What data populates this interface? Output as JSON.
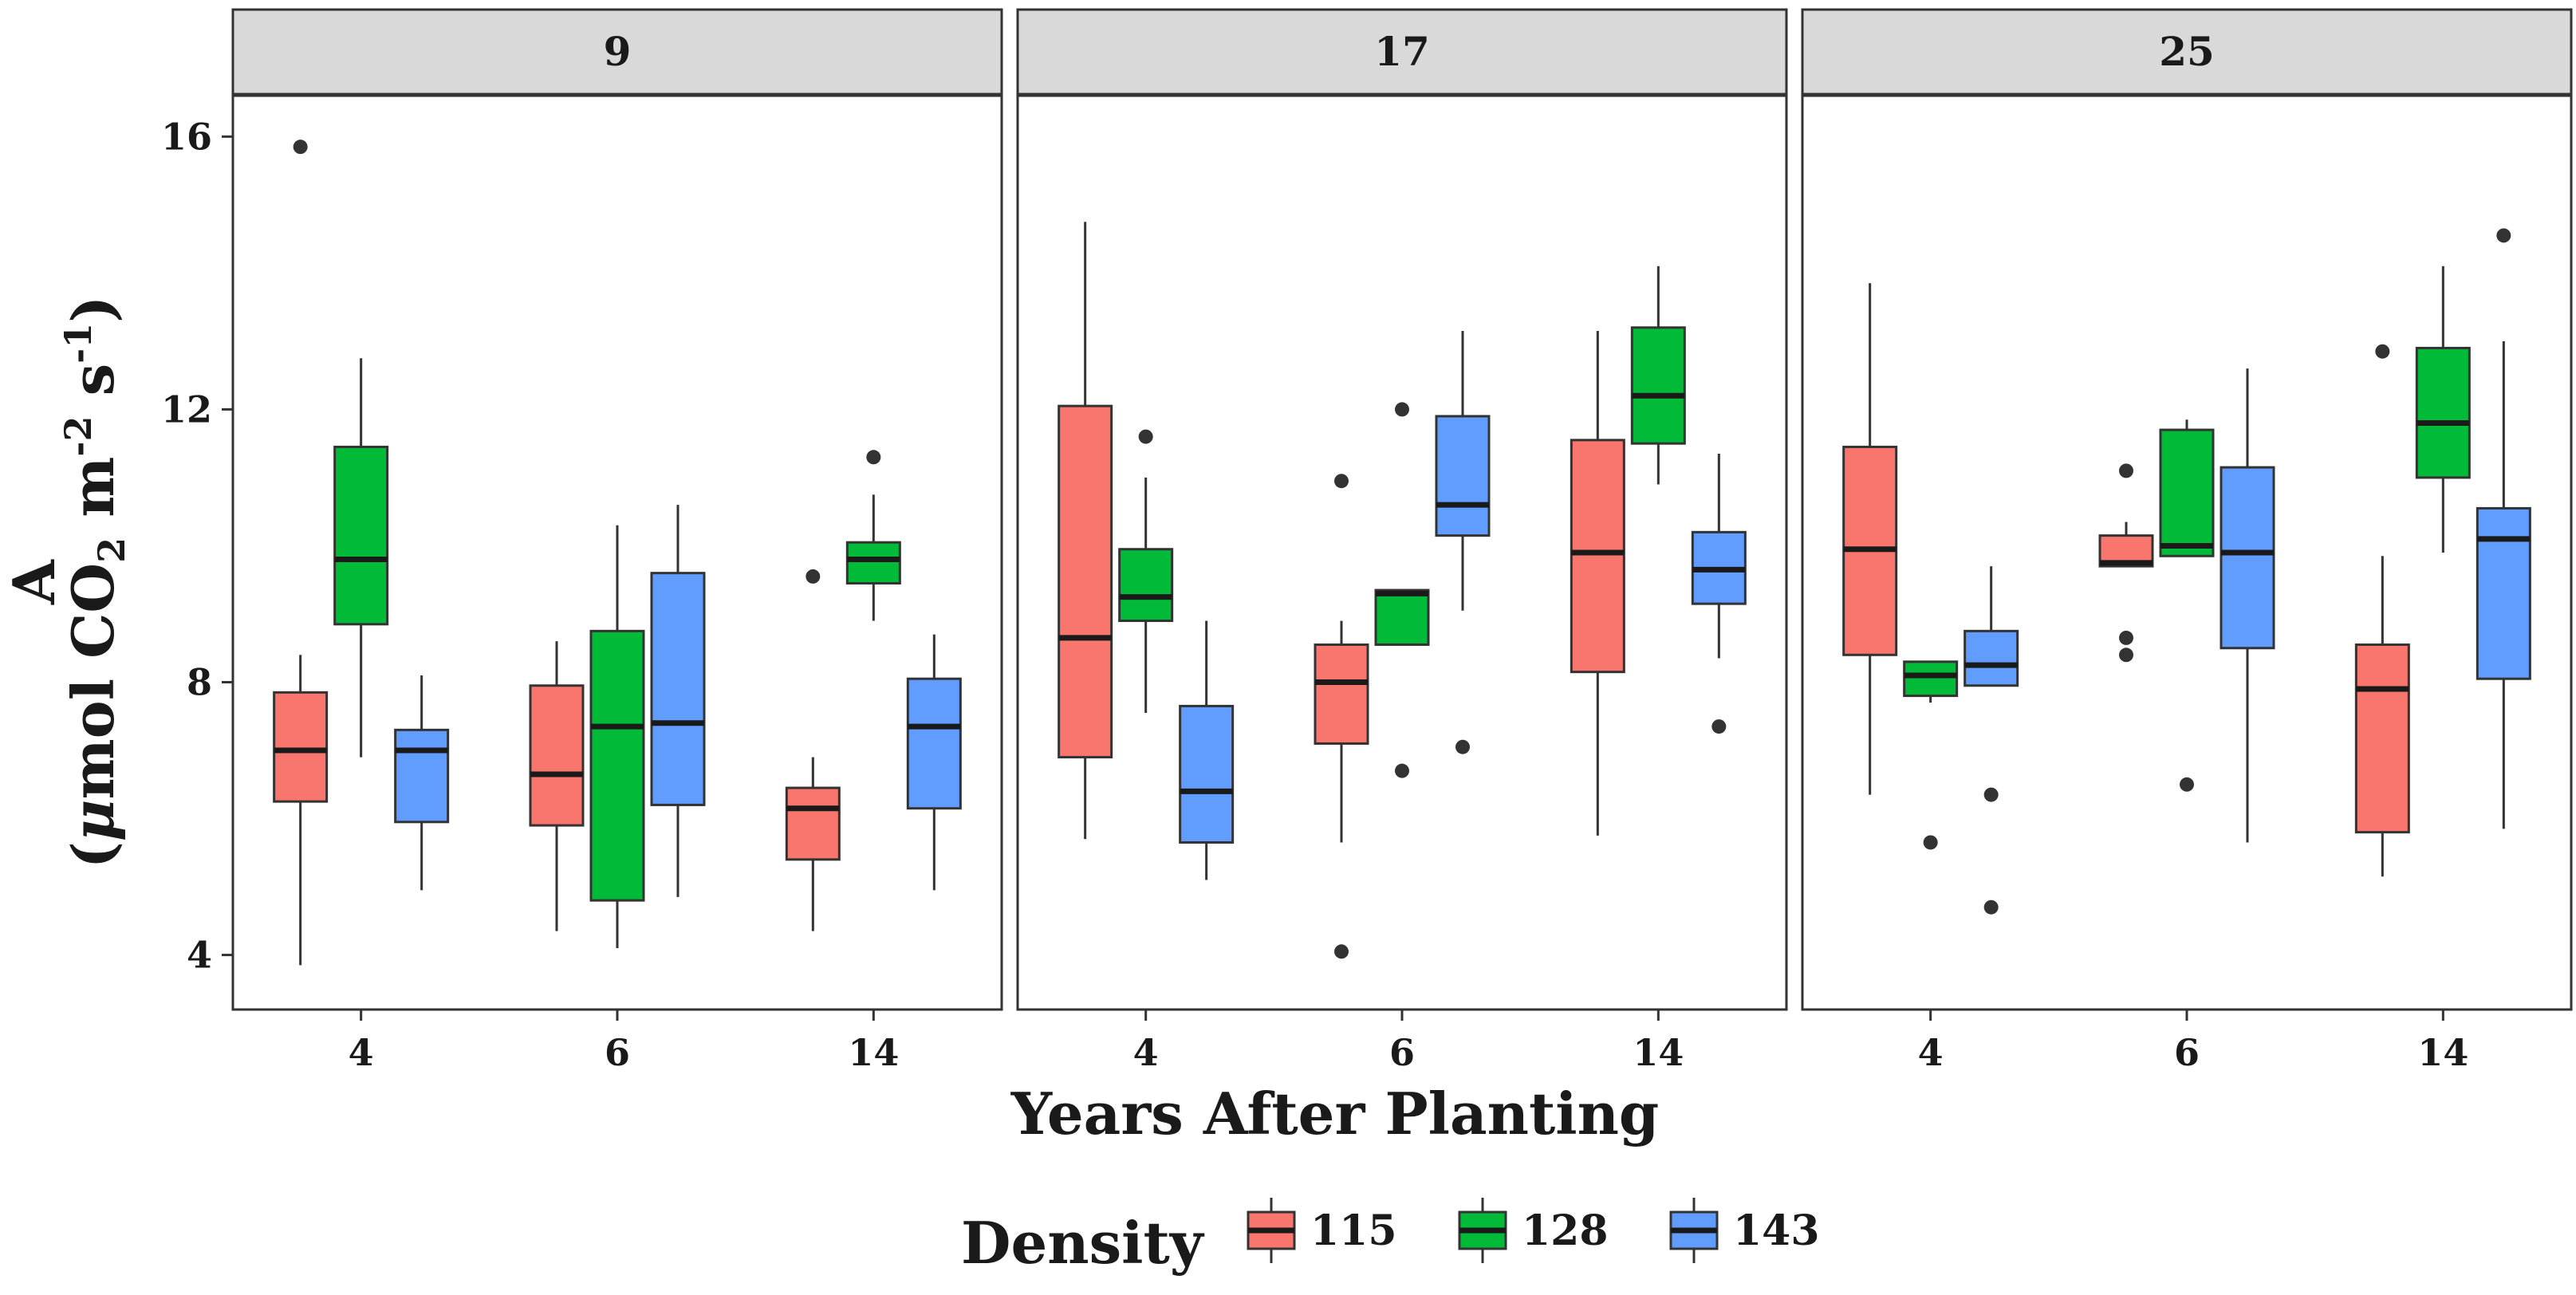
{
  "chart_data": {
    "type": "boxplot",
    "facets": [
      "9",
      "17",
      "25"
    ],
    "categories": [
      "4",
      "6",
      "14"
    ],
    "xlabel": "Years After Planting",
    "ylabel_line1": "A",
    "ylabel_line2_parts": [
      "(",
      "μ",
      "mol CO",
      "2",
      " m",
      "-2",
      " s",
      "-1",
      ")"
    ],
    "ylim": [
      3.2,
      16.6
    ],
    "yticks": [
      4,
      8,
      12,
      16
    ],
    "legend": {
      "title": "Density",
      "position": "bottom",
      "entries": [
        {
          "label": "115",
          "color": "#F8766D"
        },
        {
          "label": "128",
          "color": "#00BA38"
        },
        {
          "label": "143",
          "color": "#619CFF"
        }
      ]
    },
    "series_colors": {
      "115": "#F8766D",
      "128": "#00BA38",
      "143": "#619CFF"
    },
    "boxes": [
      {
        "facet": "9",
        "category": "4",
        "density": "115",
        "lower": 3.85,
        "q1": 6.25,
        "median": 7.0,
        "q3": 7.85,
        "upper": 8.4,
        "outliers": [
          15.85
        ]
      },
      {
        "facet": "9",
        "category": "4",
        "density": "128",
        "lower": 6.9,
        "q1": 8.85,
        "median": 9.8,
        "q3": 11.45,
        "upper": 12.75,
        "outliers": []
      },
      {
        "facet": "9",
        "category": "4",
        "density": "143",
        "lower": 4.95,
        "q1": 5.95,
        "median": 7.0,
        "q3": 7.3,
        "upper": 8.1,
        "outliers": []
      },
      {
        "facet": "9",
        "category": "6",
        "density": "115",
        "lower": 4.35,
        "q1": 5.9,
        "median": 6.65,
        "q3": 7.95,
        "upper": 8.6,
        "outliers": []
      },
      {
        "facet": "9",
        "category": "6",
        "density": "128",
        "lower": 4.1,
        "q1": 4.8,
        "median": 7.35,
        "q3": 8.75,
        "upper": 10.3,
        "outliers": []
      },
      {
        "facet": "9",
        "category": "6",
        "density": "143",
        "lower": 4.85,
        "q1": 6.2,
        "median": 7.4,
        "q3": 9.6,
        "upper": 10.6,
        "outliers": []
      },
      {
        "facet": "9",
        "category": "14",
        "density": "115",
        "lower": 4.35,
        "q1": 5.4,
        "median": 6.15,
        "q3": 6.45,
        "upper": 6.9,
        "outliers": [
          9.55
        ]
      },
      {
        "facet": "9",
        "category": "14",
        "density": "128",
        "lower": 8.9,
        "q1": 9.45,
        "median": 9.8,
        "q3": 10.05,
        "upper": 10.75,
        "outliers": [
          11.3
        ]
      },
      {
        "facet": "9",
        "category": "14",
        "density": "143",
        "lower": 4.95,
        "q1": 6.15,
        "median": 7.35,
        "q3": 8.05,
        "upper": 8.7,
        "outliers": []
      },
      {
        "facet": "17",
        "category": "4",
        "density": "115",
        "lower": 5.7,
        "q1": 6.9,
        "median": 8.65,
        "q3": 12.05,
        "upper": 14.75,
        "outliers": []
      },
      {
        "facet": "17",
        "category": "4",
        "density": "128",
        "lower": 7.55,
        "q1": 8.9,
        "median": 9.25,
        "q3": 9.95,
        "upper": 11.0,
        "outliers": [
          11.6
        ]
      },
      {
        "facet": "17",
        "category": "4",
        "density": "143",
        "lower": 5.1,
        "q1": 5.65,
        "median": 6.4,
        "q3": 7.65,
        "upper": 8.9,
        "outliers": []
      },
      {
        "facet": "17",
        "category": "6",
        "density": "115",
        "lower": 5.65,
        "q1": 7.1,
        "median": 8.0,
        "q3": 8.55,
        "upper": 8.9,
        "outliers": [
          10.95,
          4.05
        ]
      },
      {
        "facet": "17",
        "category": "6",
        "density": "128",
        "lower": 8.55,
        "q1": 8.55,
        "median": 9.3,
        "q3": 9.35,
        "upper": 9.35,
        "outliers": [
          12.0,
          6.7
        ]
      },
      {
        "facet": "17",
        "category": "6",
        "density": "143",
        "lower": 9.05,
        "q1": 10.15,
        "median": 10.6,
        "q3": 11.9,
        "upper": 13.15,
        "outliers": [
          7.05
        ]
      },
      {
        "facet": "17",
        "category": "14",
        "density": "115",
        "lower": 5.75,
        "q1": 8.15,
        "median": 9.9,
        "q3": 11.55,
        "upper": 13.15,
        "outliers": []
      },
      {
        "facet": "17",
        "category": "14",
        "density": "128",
        "lower": 10.9,
        "q1": 11.5,
        "median": 12.2,
        "q3": 13.2,
        "upper": 14.1,
        "outliers": []
      },
      {
        "facet": "17",
        "category": "14",
        "density": "143",
        "lower": 8.35,
        "q1": 9.15,
        "median": 9.65,
        "q3": 10.2,
        "upper": 11.35,
        "outliers": [
          7.35
        ]
      },
      {
        "facet": "25",
        "category": "4",
        "density": "115",
        "lower": 6.35,
        "q1": 8.4,
        "median": 9.95,
        "q3": 11.45,
        "upper": 13.85,
        "outliers": []
      },
      {
        "facet": "25",
        "category": "4",
        "density": "128",
        "lower": 7.7,
        "q1": 7.8,
        "median": 8.1,
        "q3": 8.3,
        "upper": 8.3,
        "outliers": [
          5.65
        ]
      },
      {
        "facet": "25",
        "category": "4",
        "density": "143",
        "lower": 7.95,
        "q1": 7.95,
        "median": 8.25,
        "q3": 8.75,
        "upper": 9.7,
        "outliers": [
          6.35,
          4.7
        ]
      },
      {
        "facet": "25",
        "category": "6",
        "density": "115",
        "lower": 9.7,
        "q1": 9.7,
        "median": 9.75,
        "q3": 10.15,
        "upper": 10.35,
        "outliers": [
          11.1,
          8.65,
          8.4
        ]
      },
      {
        "facet": "25",
        "category": "6",
        "density": "128",
        "lower": 9.85,
        "q1": 9.85,
        "median": 10.0,
        "q3": 11.7,
        "upper": 11.85,
        "outliers": [
          6.5
        ]
      },
      {
        "facet": "25",
        "category": "6",
        "density": "143",
        "lower": 5.65,
        "q1": 8.5,
        "median": 9.9,
        "q3": 11.15,
        "upper": 12.6,
        "outliers": []
      },
      {
        "facet": "25",
        "category": "14",
        "density": "115",
        "lower": 5.15,
        "q1": 5.8,
        "median": 7.9,
        "q3": 8.55,
        "upper": 9.85,
        "outliers": [
          12.85
        ]
      },
      {
        "facet": "25",
        "category": "14",
        "density": "128",
        "lower": 9.9,
        "q1": 11.0,
        "median": 11.8,
        "q3": 12.9,
        "upper": 14.1,
        "outliers": []
      },
      {
        "facet": "25",
        "category": "14",
        "density": "143",
        "lower": 5.85,
        "q1": 8.05,
        "median": 10.1,
        "q3": 10.55,
        "upper": 13.0,
        "outliers": [
          14.55
        ]
      }
    ]
  }
}
